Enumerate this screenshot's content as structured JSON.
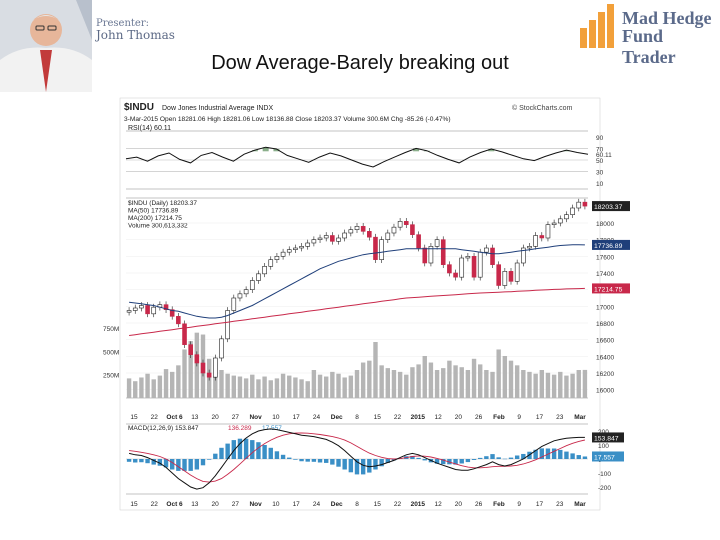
{
  "presenter": {
    "label": "Presenter:",
    "name": "John Thomas"
  },
  "logo": {
    "line1": "Mad Hedge",
    "line2": "Fund Trader"
  },
  "slide_title": "Dow Average-Barely breaking out",
  "colors": {
    "up": "#ffffff",
    "down": "#c8284a",
    "ma50": "#1f3f7a",
    "ma200": "#c8284a",
    "volume": "#b5b5b5",
    "macd_hist": "#3a8fc6",
    "rsi": "#111111",
    "rsi_fill": "#3d7a3d"
  },
  "chart_data": {
    "type": "table",
    "ticker": "$INDU",
    "name": "Dow Jones Industrial Average INDX",
    "header_line": "3-Mar-2015   Open 18281.06  High 18281.06  Low 18136.88  Close 18203.37  Volume 300.6M  Chg -85.26 (-0.47%)",
    "source": "© StockCharts.com",
    "rsi": {
      "legend": "RSI(14) 60.11",
      "levels": [
        "90",
        "70",
        "60.11",
        "50",
        "30",
        "10"
      ],
      "values": [
        52,
        55,
        48,
        57,
        62,
        51,
        45,
        58,
        63,
        55,
        48,
        60,
        67,
        72,
        69,
        58,
        52,
        46,
        55,
        62,
        57,
        50,
        43,
        38,
        47,
        55,
        63,
        70,
        66,
        58,
        51,
        45,
        55,
        63,
        69,
        64,
        58,
        52,
        49,
        56,
        62,
        67,
        63,
        60
      ]
    },
    "price": {
      "legend": [
        "$INDU (Daily) 18203.37",
        "MA(50) 17736.89",
        "MA(200) 17214.75",
        "Volume 300,613,332"
      ],
      "y_ticks": [
        "18000",
        "17800",
        "17600",
        "17400",
        "17200",
        "17000",
        "16800",
        "16600",
        "16400",
        "16200",
        "16000"
      ],
      "y_range": [
        15900,
        18300
      ],
      "last_label": "18203.37",
      "ma50_label": "17736.89",
      "ma200_label": "17214.75",
      "volume_ticks": [
        "750M",
        "500M",
        "250M"
      ],
      "volume_label": "300,613,332",
      "close": [
        16950,
        16980,
        17010,
        16910,
        16990,
        17020,
        16960,
        16880,
        16790,
        16540,
        16420,
        16320,
        16200,
        16150,
        16380,
        16610,
        16950,
        17100,
        17150,
        17200,
        17310,
        17390,
        17480,
        17560,
        17600,
        17650,
        17680,
        17700,
        17720,
        17760,
        17800,
        17820,
        17850,
        17780,
        17820,
        17880,
        17920,
        17960,
        17900,
        17830,
        17560,
        17800,
        17880,
        17950,
        18020,
        17980,
        17860,
        17700,
        17520,
        17720,
        17800,
        17500,
        17400,
        17350,
        17580,
        17600,
        17350,
        17650,
        17700,
        17500,
        17250,
        17420,
        17300,
        17520,
        17700,
        17720,
        17850,
        17820,
        17980,
        18000,
        18050,
        18100,
        18180,
        18250,
        18203
      ],
      "ma50": [
        17050,
        17040,
        17030,
        17020,
        17010,
        16990,
        16970,
        16950,
        16940,
        16920,
        16900,
        16880,
        16870,
        16860,
        16860,
        16870,
        16890,
        16920,
        16950,
        16980,
        17010,
        17050,
        17090,
        17130,
        17170,
        17210,
        17250,
        17290,
        17330,
        17370,
        17410,
        17450,
        17480,
        17510,
        17540,
        17560,
        17580,
        17600,
        17620,
        17630,
        17640,
        17650,
        17660,
        17670,
        17680,
        17690,
        17690,
        17690,
        17690,
        17690,
        17690,
        17690,
        17690,
        17690,
        17680,
        17670,
        17660,
        17650,
        17640,
        17630,
        17630,
        17640,
        17650,
        17660,
        17670,
        17680,
        17690,
        17700,
        17710,
        17720,
        17730,
        17735,
        17740,
        17740,
        17737
      ],
      "ma200": [
        16650,
        16660,
        16670,
        16680,
        16690,
        16700,
        16710,
        16720,
        16730,
        16740,
        16750,
        16760,
        16770,
        16780,
        16790,
        16800,
        16810,
        16820,
        16830,
        16840,
        16850,
        16860,
        16870,
        16880,
        16890,
        16900,
        16910,
        16920,
        16930,
        16940,
        16950,
        16960,
        16970,
        16980,
        16990,
        17000,
        17010,
        17020,
        17030,
        17040,
        17050,
        17060,
        17070,
        17080,
        17090,
        17100,
        17105,
        17110,
        17115,
        17120,
        17125,
        17130,
        17135,
        17140,
        17145,
        17150,
        17155,
        17160,
        17163,
        17166,
        17170,
        17173,
        17176,
        17180,
        17184,
        17188,
        17192,
        17196,
        17200,
        17203,
        17206,
        17209,
        17211,
        17213,
        17215
      ],
      "volume": [
        210,
        180,
        220,
        260,
        200,
        240,
        310,
        280,
        350,
        520,
        610,
        700,
        680,
        420,
        380,
        300,
        260,
        240,
        230,
        210,
        250,
        200,
        230,
        190,
        210,
        260,
        240,
        220,
        200,
        180,
        300,
        250,
        230,
        280,
        260,
        220,
        240,
        300,
        380,
        400,
        600,
        350,
        320,
        300,
        280,
        250,
        330,
        360,
        450,
        380,
        300,
        320,
        400,
        350,
        330,
        300,
        420,
        360,
        300,
        280,
        520,
        450,
        400,
        350,
        300,
        280,
        260,
        300,
        270,
        250,
        280,
        240,
        260,
        300,
        301
      ]
    },
    "macd": {
      "legend": [
        "MACD(12,26,9) 153.847",
        "136.289",
        "17.557"
      ],
      "y_ticks": [
        "200",
        "100",
        "0",
        "-100",
        "-200"
      ],
      "right_labels": [
        "153.847",
        "17.557"
      ],
      "macd": [
        40,
        30,
        25,
        10,
        -10,
        -30,
        -60,
        -100,
        -140,
        -170,
        -200,
        -215,
        -205,
        -170,
        -120,
        -60,
        0,
        60,
        110,
        150,
        180,
        200,
        210,
        215,
        210,
        200,
        190,
        180,
        170,
        165,
        160,
        150,
        140,
        120,
        95,
        60,
        20,
        -20,
        -45,
        -55,
        -50,
        -40,
        -25,
        -10,
        10,
        30,
        40,
        30,
        10,
        -10,
        -30,
        -45,
        -60,
        -75,
        -80,
        -80,
        -70,
        -55,
        -40,
        -20,
        -40,
        -50,
        -40,
        -20,
        0,
        30,
        60,
        90,
        110,
        130,
        140,
        148,
        152,
        154,
        154
      ],
      "signal": [
        60,
        55,
        48,
        40,
        30,
        18,
        0,
        -25,
        -55,
        -85,
        -115,
        -140,
        -160,
        -165,
        -158,
        -140,
        -110,
        -75,
        -35,
        5,
        45,
        80,
        110,
        135,
        155,
        170,
        180,
        185,
        186,
        184,
        180,
        175,
        168,
        160,
        150,
        135,
        115,
        90,
        65,
        42,
        25,
        12,
        3,
        0,
        3,
        10,
        18,
        22,
        20,
        14,
        4,
        -8,
        -22,
        -35,
        -48,
        -58,
        -63,
        -63,
        -60,
        -55,
        -52,
        -52,
        -50,
        -45,
        -36,
        -22,
        -6,
        14,
        35,
        55,
        75,
        95,
        112,
        126,
        136
      ],
      "hist": [
        -20,
        -25,
        -23,
        -30,
        -40,
        -48,
        -60,
        -75,
        -85,
        -85,
        -85,
        -75,
        -45,
        -5,
        38,
        80,
        110,
        135,
        145,
        145,
        135,
        120,
        100,
        80,
        55,
        30,
        10,
        -5,
        -16,
        -19,
        -20,
        -25,
        -28,
        -40,
        -55,
        -75,
        -95,
        -110,
        -110,
        -97,
        -75,
        -52,
        -28,
        -10,
        7,
        20,
        22,
        8,
        -10,
        -24,
        -34,
        -37,
        -38,
        -40,
        -32,
        -22,
        -7,
        8,
        20,
        35,
        12,
        2,
        10,
        25,
        36,
        52,
        66,
        76,
        75,
        75,
        65,
        53,
        40,
        28,
        18
      ]
    },
    "x_labels": [
      "15",
      "22",
      "Oct 6",
      "13",
      "20",
      "27",
      "Nov",
      "10",
      "17",
      "24",
      "Dec",
      "8",
      "15",
      "22",
      "2015",
      "12",
      "20",
      "26",
      "Feb",
      "9",
      "17",
      "23",
      "Mar"
    ]
  }
}
